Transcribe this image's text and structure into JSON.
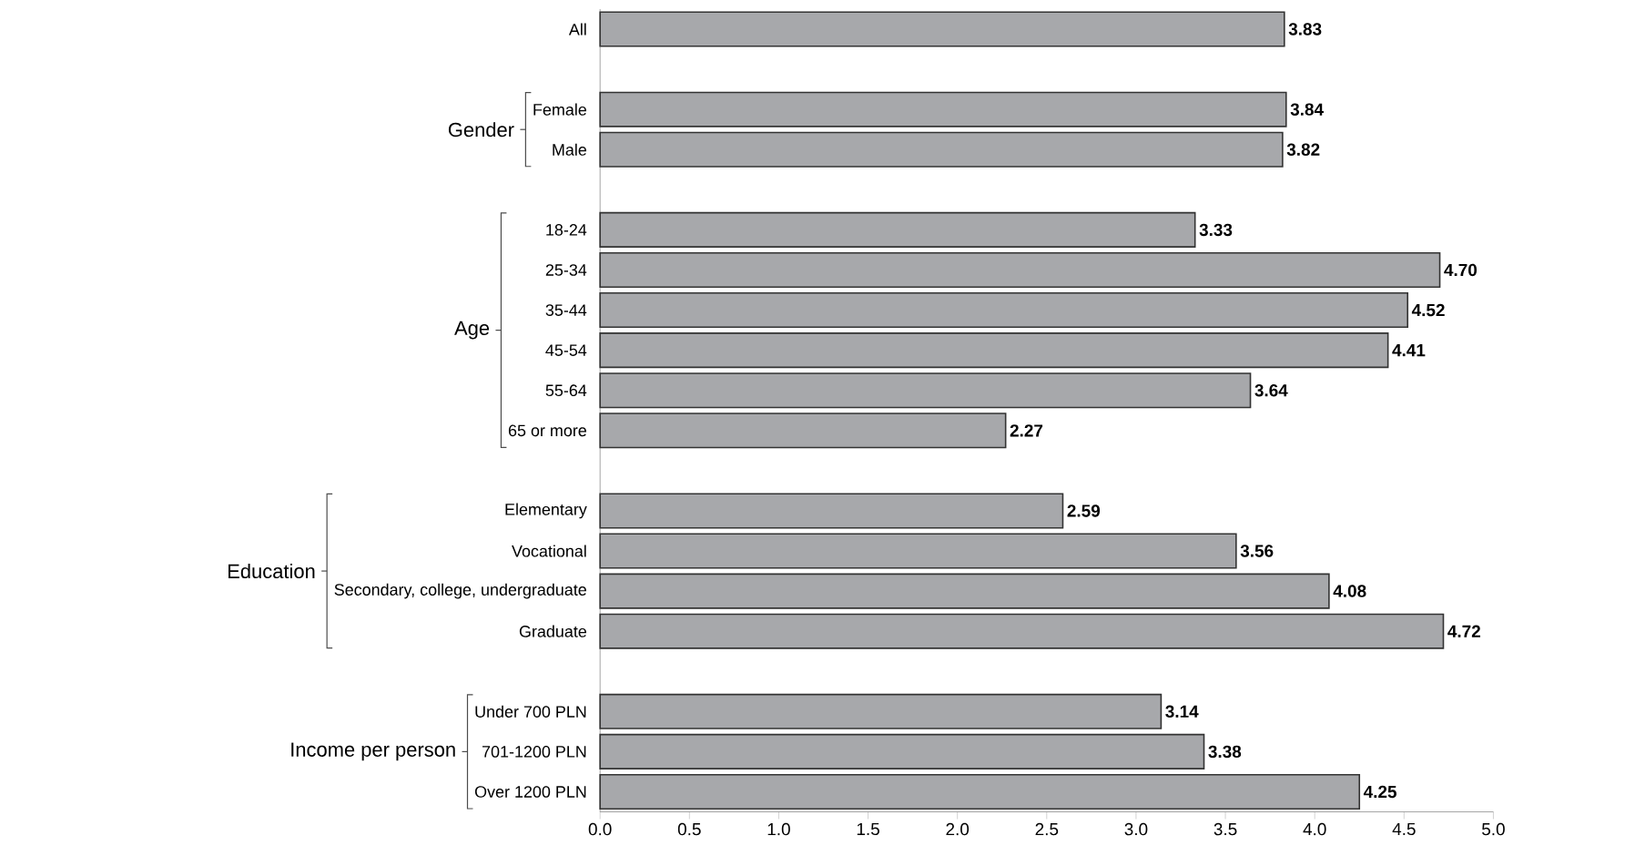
{
  "chart_data": {
    "type": "bar",
    "orientation": "horizontal",
    "categories": [
      "All",
      null,
      "Female",
      "Male",
      null,
      "18-24",
      "25-34",
      "35-44",
      "45-54",
      "55-64",
      "65 or more",
      null,
      "Elementary",
      "Vocational",
      "Secondary, college, undergraduate",
      "Graduate",
      null,
      "Under 700 PLN",
      "701-1200 PLN",
      "Over 1200 PLN"
    ],
    "values": [
      3.83,
      null,
      3.84,
      3.82,
      null,
      3.33,
      4.7,
      4.52,
      4.41,
      3.64,
      2.27,
      null,
      2.59,
      3.56,
      4.08,
      4.72,
      null,
      3.14,
      3.38,
      4.25
    ],
    "value_labels": [
      "3.83",
      null,
      "3.84",
      "3.82",
      null,
      "3.33",
      "4.70",
      "4.52",
      "4.41",
      "3.64",
      "2.27",
      null,
      "2.59",
      "3.56",
      "4.08",
      "4.72",
      null,
      "3.14",
      "3.38",
      "4.25"
    ],
    "color": "#a7a8ab",
    "xlim": [
      0,
      5
    ],
    "xticks": [
      {
        "value": 0,
        "label": "0.0"
      },
      {
        "value": 0.5,
        "label": "0.5"
      },
      {
        "value": 1,
        "label": "1.0"
      },
      {
        "value": 1.5,
        "label": "1.5"
      },
      {
        "value": 2,
        "label": "2.0"
      },
      {
        "value": 2.5,
        "label": "2.5"
      },
      {
        "value": 3,
        "label": "3.0"
      },
      {
        "value": 3.5,
        "label": "3.5"
      },
      {
        "value": 4,
        "label": "4.0"
      },
      {
        "value": 4.5,
        "label": "4.5"
      },
      {
        "value": 5,
        "label": "5.0"
      }
    ],
    "annotations": [
      "Gender",
      "Age",
      "Education",
      "Income per person"
    ]
  }
}
